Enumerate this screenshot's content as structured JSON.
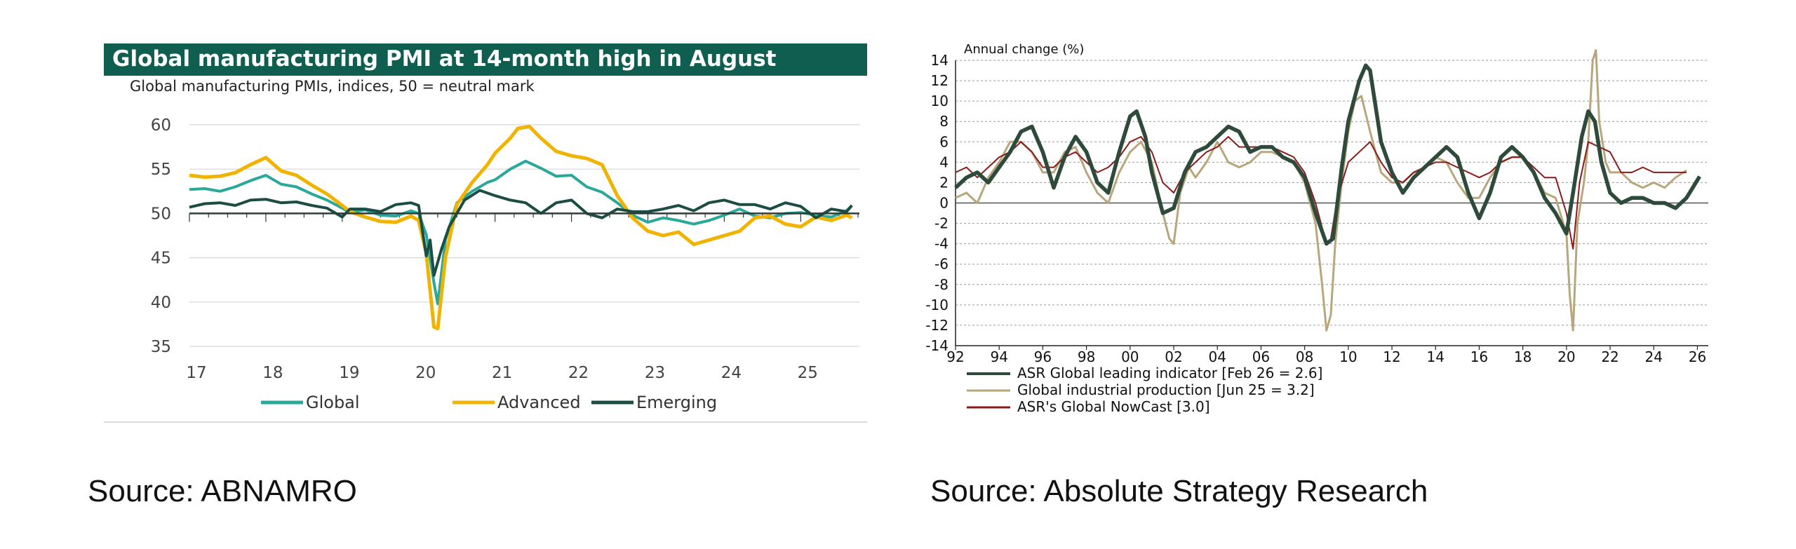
{
  "chart_data": [
    {
      "type": "line",
      "title": "Global manufacturing PMI at 14-month high in August",
      "subtitle": "Global manufacturing PMIs, indices, 50 = neutral mark",
      "xlabel": "",
      "ylabel": "",
      "xlim": [
        17,
        25.75
      ],
      "ylim": [
        35,
        60
      ],
      "x_ticks": [
        "17",
        "18",
        "19",
        "20",
        "21",
        "22",
        "23",
        "24",
        "25"
      ],
      "y_ticks": [
        "60",
        "55",
        "50",
        "45",
        "40",
        "35"
      ],
      "reference_line": 50,
      "legend_position": "bottom",
      "series": [
        {
          "name": "Global",
          "color": "#2aa89a",
          "x": [
            17.0,
            17.2,
            17.4,
            17.6,
            17.8,
            18.0,
            18.2,
            18.4,
            18.6,
            18.8,
            19.0,
            19.1,
            19.3,
            19.5,
            19.7,
            19.9,
            20.0,
            20.1,
            20.2,
            20.25,
            20.35,
            20.5,
            20.7,
            20.9,
            21.0,
            21.2,
            21.4,
            21.6,
            21.8,
            22.0,
            22.2,
            22.4,
            22.6,
            22.8,
            23.0,
            23.2,
            23.4,
            23.6,
            23.8,
            24.0,
            24.2,
            24.4,
            24.6,
            24.8,
            25.0,
            25.2,
            25.4,
            25.6,
            25.67
          ],
          "values": [
            52.7,
            52.8,
            52.5,
            53.0,
            53.7,
            54.3,
            53.3,
            53.0,
            52.2,
            51.5,
            50.6,
            50.1,
            50.4,
            49.8,
            49.7,
            50.3,
            50.0,
            47.6,
            42.2,
            39.8,
            47.0,
            51.2,
            52.5,
            53.5,
            53.8,
            55.0,
            55.9,
            55.1,
            54.2,
            54.3,
            53.0,
            52.4,
            51.2,
            49.8,
            49.0,
            49.5,
            49.2,
            48.8,
            49.2,
            49.8,
            50.5,
            49.7,
            49.5,
            50.0,
            50.1,
            49.8,
            49.6,
            50.3,
            50.9
          ]
        },
        {
          "name": "Advanced",
          "color": "#f0b400",
          "x": [
            17.0,
            17.2,
            17.4,
            17.6,
            17.8,
            18.0,
            18.2,
            18.4,
            18.6,
            18.8,
            19.0,
            19.1,
            19.3,
            19.5,
            19.7,
            19.9,
            20.0,
            20.1,
            20.2,
            20.25,
            20.35,
            20.5,
            20.7,
            20.9,
            21.0,
            21.2,
            21.3,
            21.45,
            21.6,
            21.8,
            22.0,
            22.2,
            22.4,
            22.6,
            22.8,
            23.0,
            23.2,
            23.4,
            23.6,
            23.8,
            24.0,
            24.2,
            24.4,
            24.6,
            24.8,
            25.0,
            25.2,
            25.4,
            25.6,
            25.67
          ],
          "values": [
            54.3,
            54.1,
            54.2,
            54.6,
            55.5,
            56.3,
            54.8,
            54.3,
            53.2,
            52.2,
            50.9,
            50.2,
            49.6,
            49.1,
            49.0,
            49.7,
            49.2,
            45.5,
            37.2,
            37.0,
            45.0,
            51.0,
            53.5,
            55.5,
            56.8,
            58.5,
            59.6,
            59.8,
            58.5,
            57.0,
            56.5,
            56.2,
            55.5,
            52.0,
            49.5,
            48.0,
            47.5,
            47.9,
            46.5,
            47.0,
            47.5,
            48.0,
            49.5,
            49.7,
            48.8,
            48.5,
            49.6,
            49.2,
            49.8,
            49.5
          ]
        },
        {
          "name": "Emerging",
          "color": "#1b4d43",
          "x": [
            17.0,
            17.2,
            17.4,
            17.6,
            17.8,
            18.0,
            18.2,
            18.4,
            18.6,
            18.8,
            19.0,
            19.1,
            19.3,
            19.5,
            19.7,
            19.9,
            20.0,
            20.1,
            20.15,
            20.2,
            20.3,
            20.4,
            20.6,
            20.8,
            21.0,
            21.2,
            21.4,
            21.6,
            21.8,
            22.0,
            22.2,
            22.4,
            22.6,
            22.8,
            23.0,
            23.2,
            23.4,
            23.6,
            23.8,
            24.0,
            24.2,
            24.4,
            24.6,
            24.8,
            25.0,
            25.2,
            25.4,
            25.6,
            25.67
          ],
          "values": [
            50.7,
            51.1,
            51.2,
            50.9,
            51.5,
            51.6,
            51.2,
            51.3,
            50.9,
            50.6,
            49.6,
            50.5,
            50.5,
            50.2,
            51.0,
            51.2,
            50.9,
            45.2,
            47.0,
            43.0,
            46.0,
            48.5,
            51.5,
            52.6,
            52.0,
            51.5,
            51.2,
            50.0,
            51.2,
            51.5,
            50.0,
            49.5,
            50.5,
            50.2,
            50.2,
            50.5,
            50.9,
            50.3,
            51.2,
            51.5,
            51.0,
            51.0,
            50.5,
            51.2,
            50.8,
            49.5,
            50.5,
            50.2,
            50.9
          ]
        }
      ]
    },
    {
      "type": "line",
      "title": "",
      "ylabel": "Annual change (%)",
      "xlabel": "",
      "xlim": [
        92,
        26
      ],
      "ylim": [
        -14,
        14
      ],
      "x_ticks": [
        "92",
        "94",
        "96",
        "98",
        "00",
        "02",
        "04",
        "06",
        "08",
        "10",
        "12",
        "14",
        "16",
        "18",
        "20",
        "22",
        "24",
        "26"
      ],
      "y_ticks": [
        "14",
        "12",
        "10",
        "8",
        "6",
        "4",
        "2",
        "0",
        "-2",
        "-4",
        "-6",
        "-8",
        "-10",
        "-12",
        "-14"
      ],
      "legend_position": "bottom-left",
      "series": [
        {
          "name": "ASR Global leading indicator [Feb 26 = 2.6]",
          "color": "#2d4a3a",
          "x": [
            1992.0,
            1992.5,
            1993.0,
            1993.5,
            1994.0,
            1994.5,
            1995.0,
            1995.5,
            1996.0,
            1996.5,
            1997.0,
            1997.5,
            1998.0,
            1998.5,
            1999.0,
            1999.5,
            2000.0,
            2000.3,
            2000.7,
            2001.0,
            2001.5,
            2002.0,
            2002.5,
            2003.0,
            2003.5,
            2004.0,
            2004.5,
            2005.0,
            2005.5,
            2006.0,
            2006.5,
            2007.0,
            2007.5,
            2008.0,
            2008.5,
            2009.0,
            2009.3,
            2009.7,
            2010.0,
            2010.5,
            2010.8,
            2011.0,
            2011.5,
            2012.0,
            2012.5,
            2013.0,
            2013.5,
            2014.0,
            2014.5,
            2015.0,
            2015.5,
            2016.0,
            2016.5,
            2017.0,
            2017.5,
            2018.0,
            2018.5,
            2019.0,
            2019.5,
            2020.0,
            2020.3,
            2020.7,
            2021.0,
            2021.3,
            2021.6,
            2022.0,
            2022.5,
            2023.0,
            2023.5,
            2024.0,
            2024.5,
            2025.0,
            2025.5,
            2026.1
          ],
          "values": [
            1.5,
            2.5,
            3.0,
            2.0,
            3.5,
            5.0,
            7.0,
            7.5,
            5.0,
            1.5,
            4.5,
            6.5,
            5.0,
            2.0,
            1.0,
            5.0,
            8.5,
            9.0,
            6.5,
            3.0,
            -1.0,
            -0.5,
            3.0,
            5.0,
            5.5,
            6.5,
            7.5,
            7.0,
            5.0,
            5.5,
            5.5,
            4.5,
            4.0,
            2.5,
            -1.0,
            -4.0,
            -3.5,
            3.5,
            8.0,
            12.0,
            13.5,
            13.0,
            6.0,
            3.0,
            1.0,
            2.5,
            3.5,
            4.5,
            5.5,
            4.5,
            1.0,
            -1.5,
            1.0,
            4.5,
            5.5,
            4.5,
            3.0,
            0.5,
            -1.0,
            -3.0,
            1.0,
            6.5,
            9.0,
            8.0,
            4.0,
            1.0,
            0.0,
            0.5,
            0.5,
            0.0,
            0.0,
            -0.5,
            0.5,
            2.6
          ]
        },
        {
          "name": "Global industrial production [Jun 25 = 3.2]",
          "color": "#b8a67c",
          "x": [
            1992.0,
            1992.5,
            1993.0,
            1993.5,
            1994.0,
            1994.5,
            1995.0,
            1995.5,
            1996.0,
            1996.5,
            1997.0,
            1997.5,
            1998.0,
            1998.5,
            1999.0,
            1999.5,
            2000.0,
            2000.5,
            2001.0,
            2001.5,
            2001.8,
            2002.0,
            2002.3,
            2002.7,
            2003.0,
            2003.5,
            2004.0,
            2004.5,
            2005.0,
            2005.5,
            2006.0,
            2006.5,
            2007.0,
            2007.5,
            2008.0,
            2008.5,
            2008.8,
            2009.0,
            2009.2,
            2009.4,
            2009.7,
            2010.0,
            2010.3,
            2010.6,
            2011.0,
            2011.5,
            2012.0,
            2012.5,
            2013.0,
            2013.5,
            2014.0,
            2014.5,
            2015.0,
            2015.5,
            2016.0,
            2016.5,
            2017.0,
            2017.5,
            2018.0,
            2018.5,
            2019.0,
            2019.5,
            2020.0,
            2020.15,
            2020.3,
            2020.5,
            2020.8,
            2021.0,
            2021.2,
            2021.35,
            2021.5,
            2021.8,
            2022.0,
            2022.5,
            2023.0,
            2023.5,
            2024.0,
            2024.5,
            2025.0,
            2025.5
          ],
          "values": [
            0.5,
            1.0,
            0.0,
            2.5,
            4.0,
            6.0,
            6.0,
            5.0,
            3.0,
            3.0,
            5.0,
            5.5,
            3.0,
            1.0,
            0.0,
            3.0,
            5.0,
            6.0,
            4.0,
            -1.0,
            -3.5,
            -4.0,
            1.0,
            3.5,
            2.5,
            4.0,
            6.0,
            4.0,
            3.5,
            4.0,
            5.0,
            5.0,
            4.5,
            4.0,
            2.0,
            -2.0,
            -8.0,
            -12.5,
            -11.0,
            -4.0,
            2.0,
            7.0,
            10.0,
            10.5,
            7.0,
            3.0,
            2.0,
            2.0,
            3.0,
            3.5,
            4.5,
            4.0,
            2.0,
            0.5,
            0.5,
            2.5,
            4.0,
            4.5,
            4.5,
            3.0,
            1.0,
            0.5,
            -3.0,
            -9.0,
            -12.5,
            -2.0,
            2.0,
            6.0,
            14.0,
            15.0,
            8.0,
            4.0,
            3.0,
            3.0,
            2.0,
            1.5,
            2.0,
            1.5,
            2.5,
            3.2
          ]
        },
        {
          "name": "ASR's Global NowCast [3.0]",
          "color": "#8b1a1a",
          "x": [
            1992.0,
            1992.5,
            1993.0,
            1993.5,
            1994.0,
            1994.5,
            1995.0,
            1995.5,
            1996.0,
            1996.5,
            1997.0,
            1997.5,
            1998.0,
            1998.5,
            1999.0,
            1999.5,
            2000.0,
            2000.5,
            2001.0,
            2001.5,
            2002.0,
            2002.5,
            2003.0,
            2003.5,
            2004.0,
            2004.5,
            2005.0,
            2005.5,
            2006.0,
            2006.5,
            2007.0,
            2007.5,
            2008.0,
            2008.5,
            2009.0,
            2009.2,
            2009.5,
            2010.0,
            2010.5,
            2011.0,
            2011.5,
            2012.0,
            2012.5,
            2013.0,
            2013.5,
            2014.0,
            2014.5,
            2015.0,
            2015.5,
            2016.0,
            2016.5,
            2017.0,
            2017.5,
            2018.0,
            2018.5,
            2019.0,
            2019.5,
            2020.0,
            2020.3,
            2020.6,
            2021.0,
            2021.5,
            2022.0,
            2022.5,
            2023.0,
            2023.5,
            2024.0,
            2024.5,
            2025.0,
            2025.5
          ],
          "values": [
            3.0,
            3.5,
            2.5,
            3.5,
            4.5,
            5.0,
            6.0,
            5.0,
            3.5,
            3.5,
            4.5,
            5.0,
            4.0,
            3.0,
            3.5,
            4.5,
            6.0,
            6.5,
            5.0,
            2.0,
            1.0,
            3.0,
            4.0,
            5.0,
            5.5,
            6.5,
            5.5,
            5.5,
            5.5,
            5.5,
            5.0,
            4.5,
            3.0,
            0.0,
            -4.0,
            -3.5,
            0.5,
            4.0,
            5.0,
            6.0,
            4.0,
            2.5,
            2.0,
            3.0,
            3.5,
            4.0,
            4.0,
            3.5,
            3.0,
            2.5,
            3.0,
            4.0,
            4.5,
            4.5,
            3.5,
            2.5,
            2.5,
            -1.0,
            -4.5,
            2.0,
            6.0,
            5.5,
            5.0,
            3.0,
            3.0,
            3.5,
            3.0,
            3.0,
            3.0,
            3.0
          ]
        }
      ]
    }
  ],
  "sources": {
    "left": "Source: ABNAMRO",
    "right": "Source: Absolute Strategy Research"
  }
}
